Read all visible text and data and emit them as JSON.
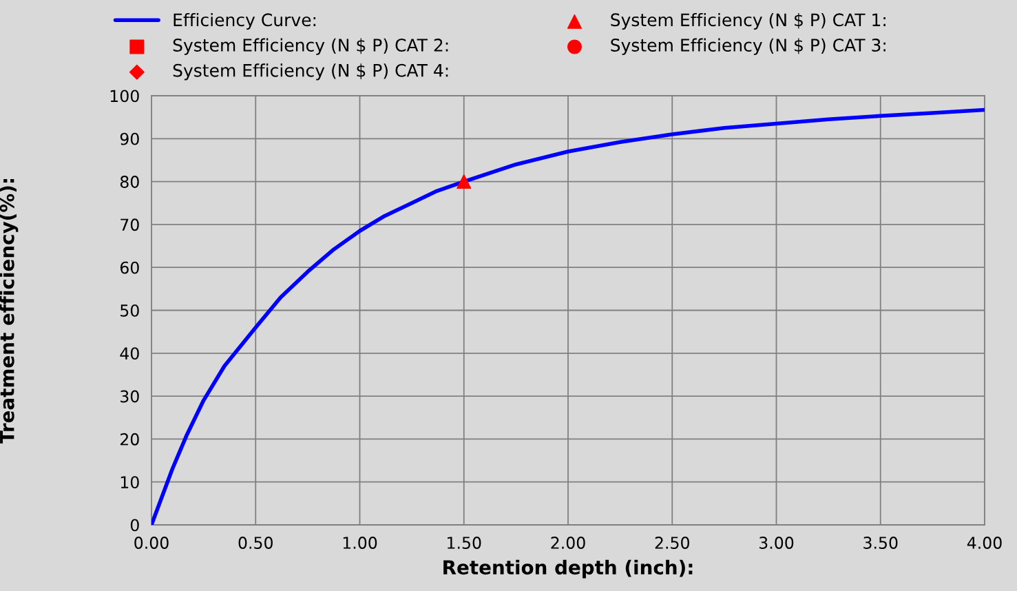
{
  "chart_data": {
    "type": "line",
    "xlabel": "Retention depth (inch):",
    "ylabel": "Treatment efficiency(%):",
    "xlim": [
      0,
      4
    ],
    "xticks": [
      {
        "value": 0,
        "label": "0.00"
      },
      {
        "value": 0.5,
        "label": "0.50"
      },
      {
        "value": 1,
        "label": "1.00"
      },
      {
        "value": 1.5,
        "label": "1.50"
      },
      {
        "value": 2,
        "label": "2.00"
      },
      {
        "value": 2.5,
        "label": "2.50"
      },
      {
        "value": 3,
        "label": "3.00"
      },
      {
        "value": 3.5,
        "label": "3.50"
      },
      {
        "value": 4,
        "label": "4.00"
      }
    ],
    "ylim": [
      0,
      100
    ],
    "yticks": [
      0,
      10,
      20,
      30,
      40,
      50,
      60,
      70,
      80,
      90,
      100
    ],
    "grid": true,
    "legend": "top",
    "series": [
      {
        "name": "Efficiency Curve:",
        "color": "#0000ff",
        "marker": "none",
        "x": [
          0,
          0.1,
          0.17,
          0.25,
          0.35,
          0.5,
          0.62,
          0.75,
          0.87,
          1.0,
          1.12,
          1.25,
          1.37,
          1.5,
          1.75,
          2.0,
          2.25,
          2.5,
          2.75,
          3.0,
          3.25,
          3.5,
          3.75,
          4.0
        ],
        "values": [
          0,
          13,
          21,
          29,
          37,
          46,
          53,
          59,
          64,
          68.5,
          72,
          75,
          77.8,
          80,
          84,
          87,
          89.2,
          91,
          92.5,
          93.5,
          94.5,
          95.3,
          96,
          96.7
        ]
      },
      {
        "name": "System Efficiency (N $ P) CAT 1:",
        "type": "scatter",
        "color": "#ff0000",
        "marker": "triangle",
        "x": [
          1.5
        ],
        "values": [
          80
        ]
      },
      {
        "name": "System Efficiency (N $ P) CAT 2:",
        "type": "scatter",
        "color": "#ff0000",
        "marker": "square"
      },
      {
        "name": "System Efficiency (N $ P) CAT 3:",
        "type": "scatter",
        "color": "#ff0000",
        "marker": "circle"
      },
      {
        "name": "System Efficiency (N $ P) CAT 4:",
        "type": "scatter",
        "color": "#ff0000",
        "marker": "diamond"
      }
    ]
  }
}
